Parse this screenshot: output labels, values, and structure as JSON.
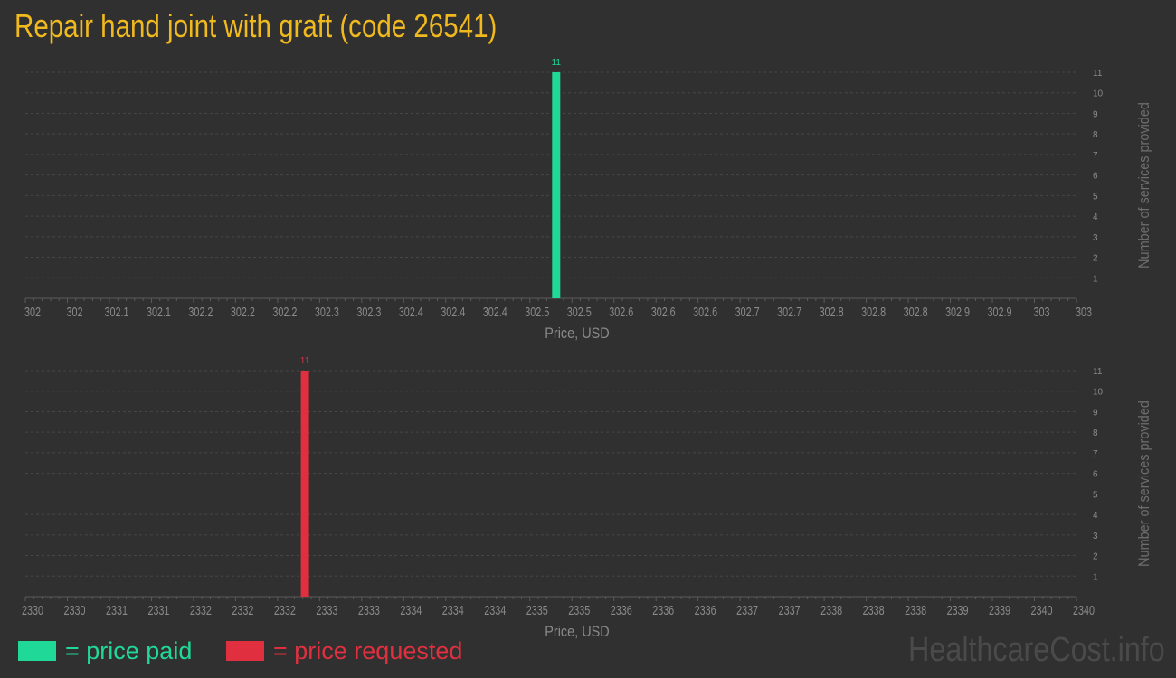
{
  "title": "Repair hand joint with graft (code 26541)",
  "brand": "HealthcareCost.info",
  "legend": [
    {
      "label": "= price paid",
      "color": "#20d998"
    },
    {
      "label": "= price requested",
      "color": "#e03040"
    }
  ],
  "chart_data": [
    {
      "type": "bar",
      "xlabel": "Price, USD",
      "ylabel": "Number of services provided",
      "xlim": [
        302.0,
        303.0
      ],
      "ylim": [
        0,
        11
      ],
      "yticks": [
        1,
        2,
        3,
        4,
        5,
        6,
        7,
        8,
        9,
        10,
        11
      ],
      "xtick_labels": [
        "302",
        "302",
        "302.1",
        "302.1",
        "302.2",
        "302.2",
        "302.2",
        "302.3",
        "302.3",
        "302.4",
        "302.4",
        "302.4",
        "302.5",
        "302.5",
        "302.6",
        "302.6",
        "302.6",
        "302.7",
        "302.7",
        "302.8",
        "302.8",
        "302.8",
        "302.9",
        "302.9",
        "303",
        "303"
      ],
      "grid": true,
      "color": "#20d998",
      "bars": [
        {
          "x": 302.505,
          "value": 11,
          "label": "11"
        }
      ]
    },
    {
      "type": "bar",
      "xlabel": "Price, USD",
      "ylabel": "Number of services provided",
      "xlim": [
        2330,
        2340
      ],
      "ylim": [
        0,
        11
      ],
      "yticks": [
        1,
        2,
        3,
        4,
        5,
        6,
        7,
        8,
        9,
        10,
        11
      ],
      "xtick_labels": [
        "2330",
        "2330",
        "2331",
        "2331",
        "2332",
        "2332",
        "2332",
        "2333",
        "2333",
        "2334",
        "2334",
        "2334",
        "2335",
        "2335",
        "2336",
        "2336",
        "2336",
        "2337",
        "2337",
        "2338",
        "2338",
        "2338",
        "2339",
        "2339",
        "2340",
        "2340"
      ],
      "grid": true,
      "color": "#e03040",
      "bars": [
        {
          "x": 2332.66,
          "value": 11,
          "label": "11"
        }
      ]
    }
  ]
}
